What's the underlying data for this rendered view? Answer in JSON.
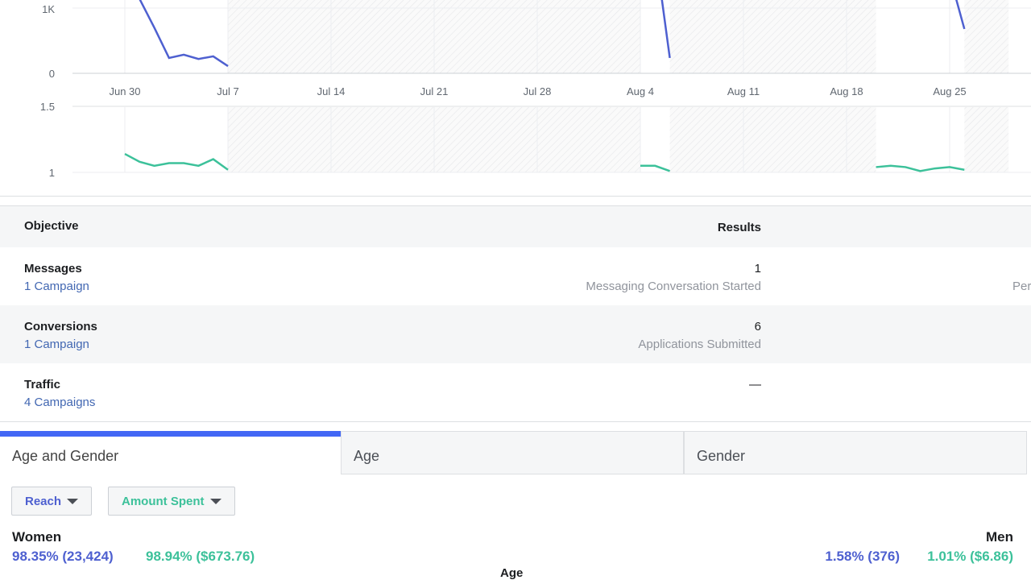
{
  "chart_data": [
    {
      "type": "line",
      "x_ticks": [
        "Jun 30",
        "Jul 7",
        "Jul 14",
        "Jul 21",
        "Jul 28",
        "Aug 4",
        "Aug 11",
        "Aug 18",
        "Aug 25"
      ],
      "y_ticks": [
        "0",
        "1K"
      ],
      "ylim": [
        0,
        1000
      ],
      "grid": true,
      "color": "#4e60d0",
      "segments": [
        {
          "x": [
            "Jun 30",
            "Jul 1",
            "Jul 2",
            "Jul 3",
            "Jul 4",
            "Jul 5",
            "Jul 6",
            "Jul 7"
          ],
          "y": [
            1500,
            1140,
            700,
            235,
            285,
            220,
            260,
            110
          ]
        },
        {
          "x": [
            "Aug 4",
            "Aug 5",
            "Aug 6"
          ],
          "y": [
            2200,
            1900,
            235
          ]
        },
        {
          "x": [
            "Aug 24",
            "Aug 25",
            "Aug 26"
          ],
          "y": [
            1800,
            1500,
            680
          ]
        }
      ]
    },
    {
      "type": "line",
      "y_ticks": [
        "1",
        "1.5"
      ],
      "ylim": [
        1,
        1.5
      ],
      "grid": true,
      "color": "#3cc19a",
      "segments": [
        {
          "x": [
            "Jun 30",
            "Jul 1",
            "Jul 2",
            "Jul 3",
            "Jul 4",
            "Jul 5",
            "Jul 6",
            "Jul 7"
          ],
          "y": [
            1.14,
            1.08,
            1.05,
            1.07,
            1.07,
            1.05,
            1.1,
            1.02
          ]
        },
        {
          "x": [
            "Aug 4",
            "Aug 5",
            "Aug 6"
          ],
          "y": [
            1.05,
            1.05,
            1.01
          ]
        },
        {
          "x": [
            "Aug 20",
            "Aug 21",
            "Aug 22",
            "Aug 23",
            "Aug 24",
            "Aug 25",
            "Aug 26"
          ],
          "y": [
            1.04,
            1.05,
            1.04,
            1.01,
            1.03,
            1.04,
            1.02
          ]
        }
      ]
    },
    {
      "no_data_ranges": [
        [
          "Jul 7",
          "Aug 4"
        ],
        [
          "Aug 6",
          "Aug 20"
        ],
        [
          "Aug 26",
          "Aug 29"
        ]
      ]
    }
  ],
  "table": {
    "headers": {
      "objective": "Objective",
      "results": "Results"
    },
    "rows": [
      {
        "name": "Messages",
        "campaigns": "1 Campaign",
        "result": "1",
        "result_label": "Messaging Conversation Started",
        "extra": "Per"
      },
      {
        "name": "Conversions",
        "campaigns": "1 Campaign",
        "result": "6",
        "result_label": "Applications Submitted"
      },
      {
        "name": "Traffic",
        "campaigns": "4 Campaigns",
        "result": "—"
      }
    ]
  },
  "tabs": [
    "Age and Gender",
    "Age",
    "Gender"
  ],
  "filters": {
    "reach": "Reach",
    "spent": "Amount Spent",
    "reach_color": "#4e60d0",
    "spent_color": "#3cc19a"
  },
  "breakdown": {
    "women": {
      "label": "Women",
      "reach": "98.35% (23,424)",
      "spent": "98.94% ($673.76)"
    },
    "men": {
      "label": "Men",
      "reach": "1.58% (376)",
      "spent": "1.01% ($6.86)"
    },
    "axis_label": "Age"
  }
}
